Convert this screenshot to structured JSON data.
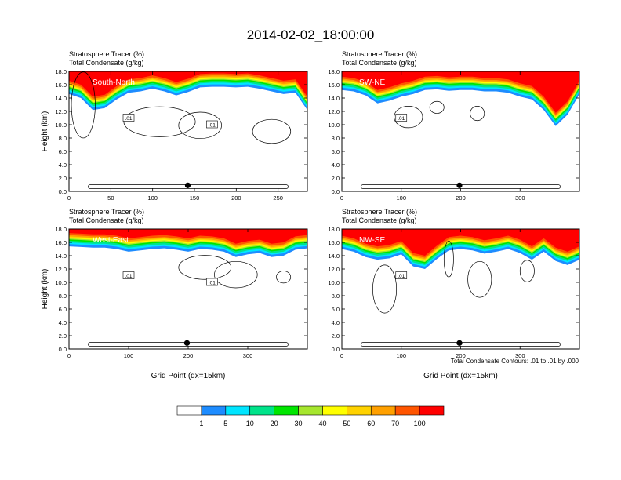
{
  "title": "2014-02-02_18:00:00",
  "footnote": "Total Condensate Contours: .01 to .01 by .000",
  "colors": {
    "levels": [
      "#ffffff",
      "#1e8cff",
      "#00e5ff",
      "#00e38a",
      "#00e600",
      "#a6e62e",
      "#ffff00",
      "#ffd200",
      "#ffa000",
      "#ff5500",
      "#ff0000"
    ]
  },
  "colorbar": {
    "labels": [
      "1",
      "5",
      "10",
      "20",
      "30",
      "40",
      "50",
      "60",
      "70",
      "100"
    ]
  },
  "chart_data": [
    {
      "type": "heatmap",
      "panel_label": "South-North",
      "subtitle_line1": "Stratosphere Tracer   (%)",
      "subtitle_line2": "Total Condensate   (g/kg)",
      "ylabel": "Height (km)",
      "xlabel": "",
      "xlim": [
        0,
        285
      ],
      "ylim": [
        0,
        18
      ],
      "x_ticks": [
        "0",
        "50",
        "100",
        "150",
        "200",
        "250"
      ],
      "y_ticks": [
        "0.0",
        "2.0",
        "4.0",
        "6.0",
        "8.0",
        "10.0",
        "12.0",
        "14.0",
        "16.0",
        "18.0"
      ],
      "contour_labels": [
        ".01",
        ".01"
      ],
      "marker_x": 142,
      "tracer_base_km": [
        14.6,
        14.0,
        12.2,
        12.5,
        13.8,
        14.8,
        15.0,
        15.4,
        15.0,
        14.4,
        14.9,
        15.6,
        15.7,
        15.7,
        15.6,
        15.7,
        15.4,
        15.0,
        14.6,
        14.8,
        12.2
      ]
    },
    {
      "type": "heatmap",
      "panel_label": "SW-NE",
      "subtitle_line1": "Stratosphere Tracer   (%)",
      "subtitle_line2": "Total Condensate   (g/kg)",
      "ylabel": "",
      "xlabel": "",
      "xlim": [
        0,
        400
      ],
      "ylim": [
        0,
        18
      ],
      "x_ticks": [
        "0",
        "100",
        "200",
        "300"
      ],
      "y_ticks": [
        "0.0",
        "2.0",
        "4.0",
        "6.0",
        "8.0",
        "10.0",
        "12.0",
        "14.0",
        "16.0",
        "18.0"
      ],
      "contour_labels": [
        ".01"
      ],
      "marker_x": 198,
      "tracer_base_km": [
        15.2,
        15.0,
        14.4,
        13.2,
        13.6,
        14.2,
        14.6,
        15.2,
        15.3,
        15.1,
        15.2,
        15.2,
        15.0,
        15.0,
        14.8,
        14.2,
        13.8,
        12.2,
        9.8,
        11.5,
        14.6
      ]
    },
    {
      "type": "heatmap",
      "panel_label": "West-East",
      "subtitle_line1": "Stratosphere Tracer   (%)",
      "subtitle_line2": "Total Condensate   (g/kg)",
      "ylabel": "Height (km)",
      "xlabel": "Grid Point (dx=15km)",
      "xlim": [
        0,
        400
      ],
      "ylim": [
        0,
        18
      ],
      "x_ticks": [
        "0",
        "100",
        "200",
        "300"
      ],
      "y_ticks": [
        "0.0",
        "2.0",
        "4.0",
        "6.0",
        "8.0",
        "10.0",
        "12.0",
        "14.0",
        "16.0",
        "18.0"
      ],
      "contour_labels": [
        ".01",
        ".01"
      ],
      "marker_x": 198,
      "tracer_base_km": [
        15.4,
        15.3,
        15.2,
        15.2,
        15.0,
        14.6,
        14.8,
        15.0,
        15.1,
        14.9,
        14.6,
        15.0,
        14.9,
        14.6,
        13.8,
        14.2,
        14.4,
        13.8,
        14.0,
        14.9,
        15.1
      ]
    },
    {
      "type": "heatmap",
      "panel_label": "NW-SE",
      "subtitle_line1": "Stratosphere Tracer   (%)",
      "subtitle_line2": "Total Condensate   (g/kg)",
      "ylabel": "",
      "xlabel": "Grid Point (dx=15km)",
      "xlim": [
        0,
        400
      ],
      "ylim": [
        0,
        18
      ],
      "x_ticks": [
        "0",
        "100",
        "200",
        "300"
      ],
      "y_ticks": [
        "0.0",
        "2.0",
        "4.0",
        "6.0",
        "8.0",
        "10.0",
        "12.0",
        "14.0",
        "16.0",
        "18.0"
      ],
      "contour_labels": [
        ".01"
      ],
      "marker_x": 198,
      "tracer_base_km": [
        15.0,
        14.6,
        13.8,
        13.4,
        13.6,
        14.2,
        12.4,
        12.0,
        13.5,
        14.8,
        15.0,
        14.8,
        14.3,
        14.6,
        15.0,
        14.4,
        13.4,
        14.6,
        13.2,
        12.6,
        13.4
      ]
    }
  ]
}
